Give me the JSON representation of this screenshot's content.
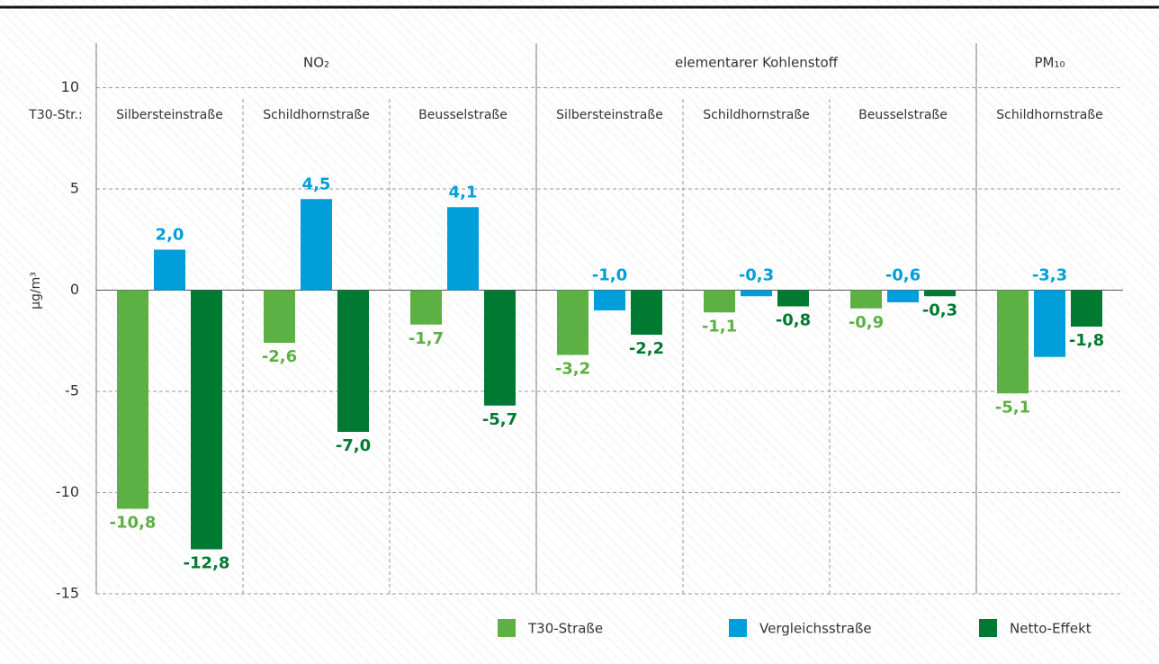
{
  "chart_data": {
    "type": "bar",
    "y_label": "µg/m³",
    "category_axis_label": "T30-Str.:",
    "groups": [
      {
        "label": "NO₂",
        "size": 3
      },
      {
        "label": "elementarer Kohlenstoff",
        "size": 3
      },
      {
        "label": "PM₁₀",
        "size": 1
      }
    ],
    "categories": [
      "Silbersteinstraße",
      "Schildhornstraße",
      "Beusselstraße",
      "Silbersteinstraße",
      "Schildhornstraße",
      "Beusselstraße",
      "Schildhornstraße"
    ],
    "series": [
      {
        "name": "T30-Straße",
        "color": "#5db043",
        "values": [
          -10.8,
          -2.6,
          -1.7,
          -3.2,
          -1.1,
          -0.9,
          -5.1
        ],
        "value_labels": [
          "-10,8",
          "-2,6",
          "-1,7",
          "-3,2",
          "-1,1",
          "-0,9",
          "-5,1"
        ]
      },
      {
        "name": "Vergleichsstraße",
        "color": "#009fda",
        "values": [
          2.0,
          4.5,
          4.1,
          -1.0,
          -0.3,
          -0.6,
          -3.3
        ],
        "value_labels": [
          "2,0",
          "4,5",
          "4,1",
          "-1,0",
          "-0,3",
          "-0,6",
          "-3,3"
        ]
      },
      {
        "name": "Netto-Effekt",
        "color": "#007a33",
        "values": [
          -12.8,
          -7.0,
          -5.7,
          -2.2,
          -0.8,
          -0.3,
          -1.8
        ],
        "value_labels": [
          "-12,8",
          "-7,0",
          "-5,7",
          "-2,2",
          "-0,8",
          "-0,3",
          "-1,8"
        ]
      }
    ],
    "ylim": [
      -15,
      12.2
    ],
    "yticks": [
      -15,
      -10,
      -5,
      0,
      5,
      10
    ],
    "grid": true,
    "legend": "bottom-right"
  }
}
